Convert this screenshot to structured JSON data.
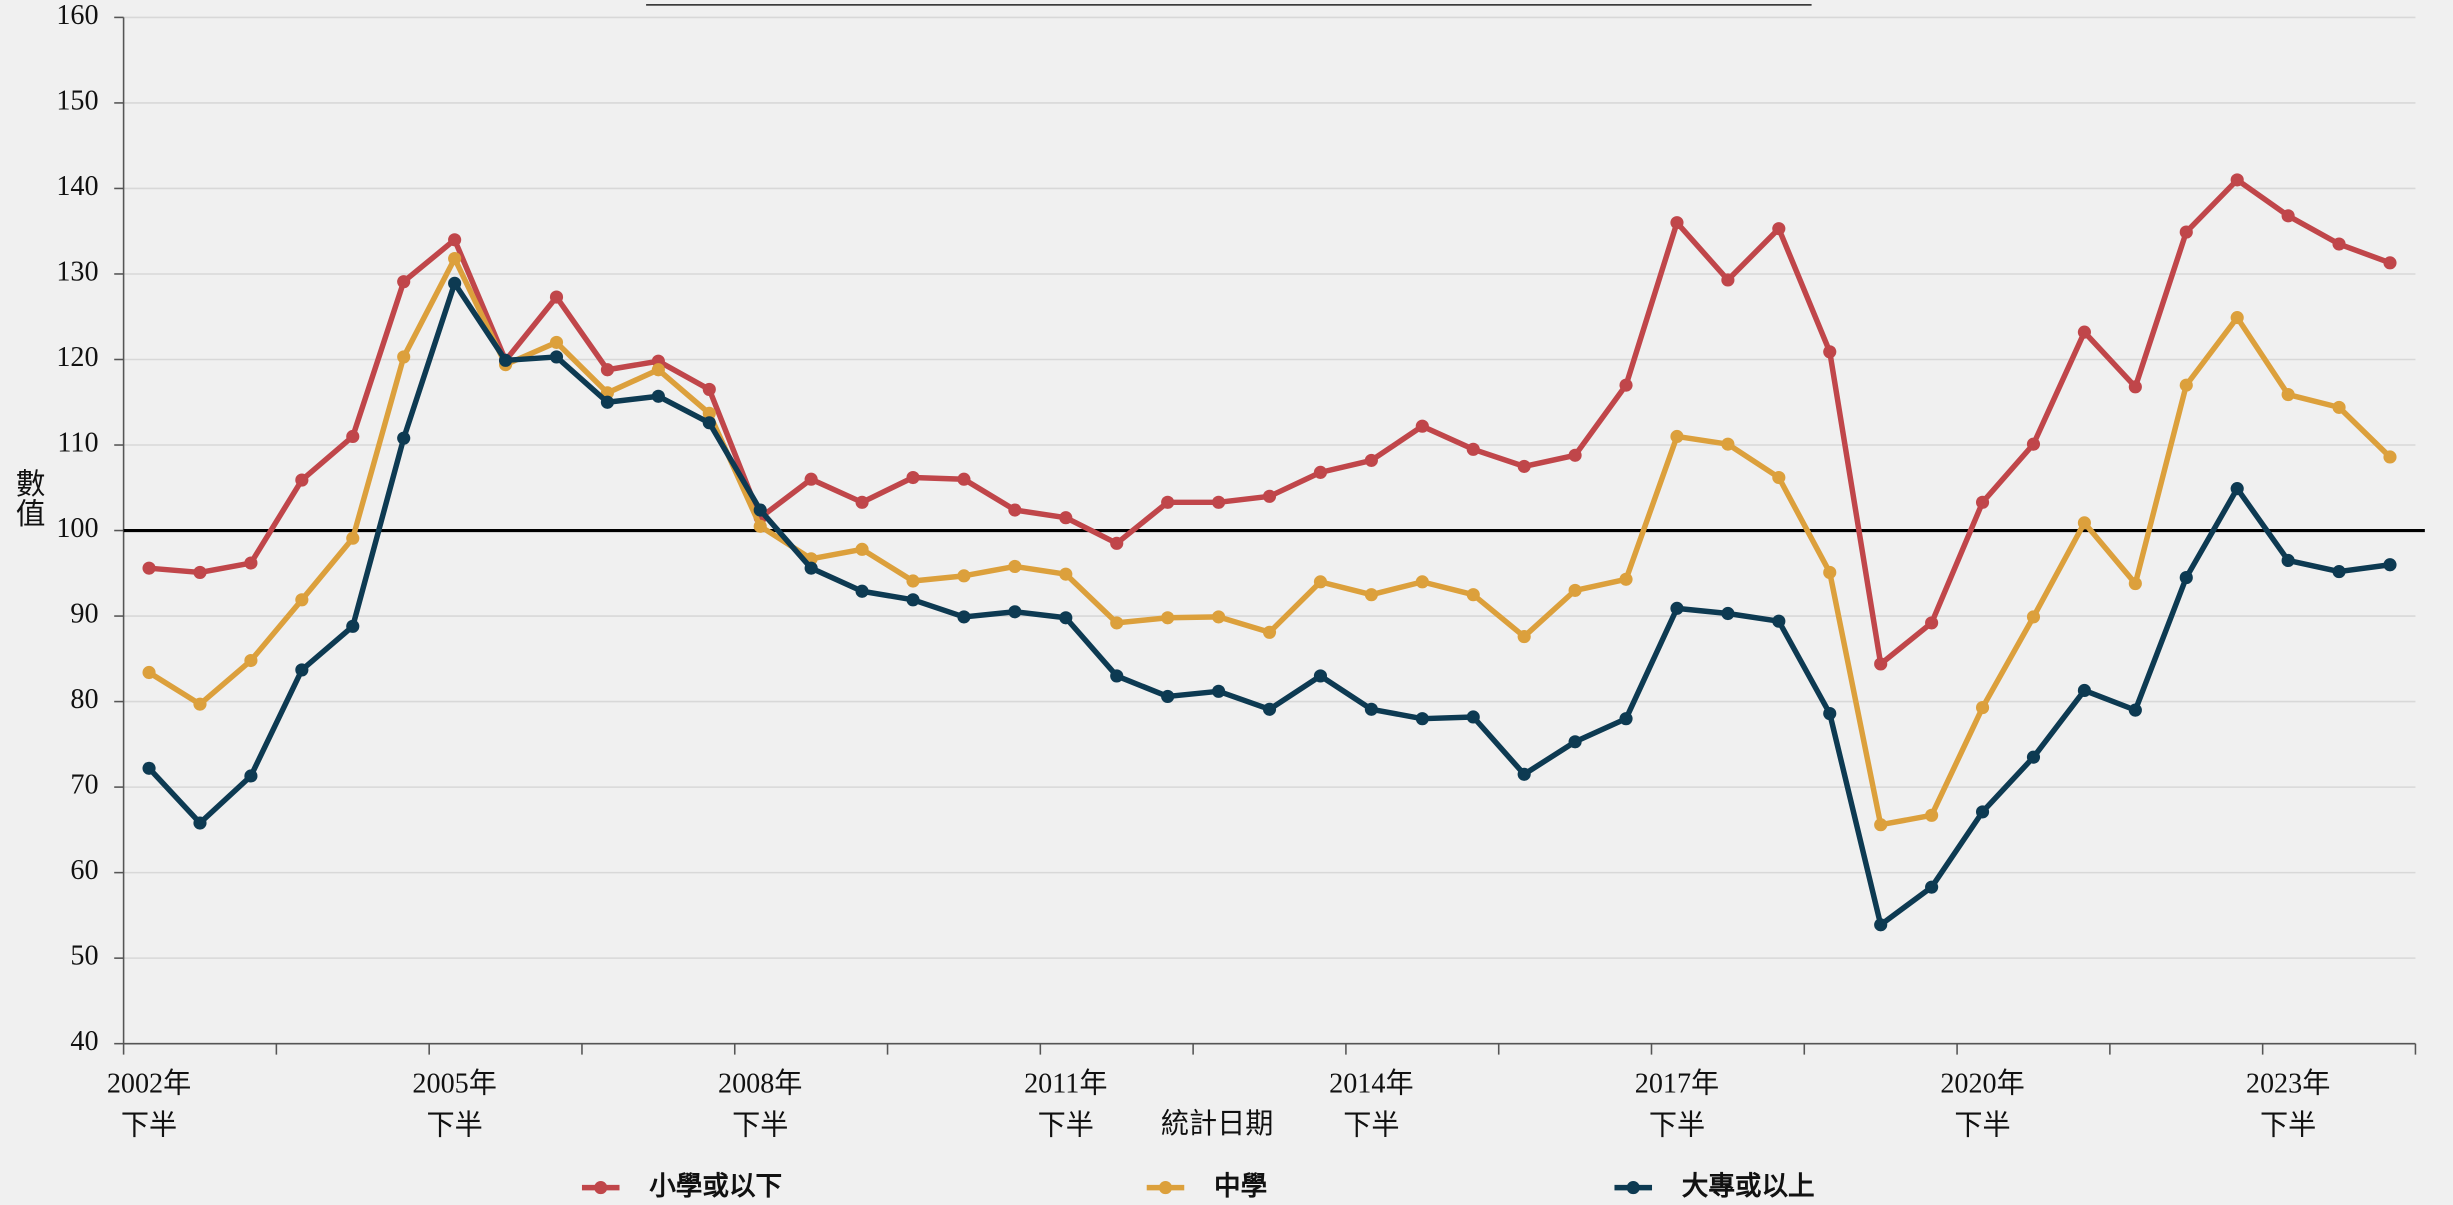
{
  "chart_data": {
    "type": "line",
    "xlabel": "統計日期",
    "ylabel": "數值",
    "categories": [
      [
        "2002年",
        "下半"
      ],
      null,
      null,
      null,
      null,
      null,
      [
        "2005年",
        "下半"
      ],
      null,
      null,
      null,
      null,
      null,
      [
        "2008年",
        "下半"
      ],
      null,
      null,
      null,
      null,
      null,
      [
        "2011年",
        "下半"
      ],
      null,
      null,
      null,
      null,
      null,
      [
        "2014年",
        "下半"
      ],
      null,
      null,
      null,
      null,
      null,
      [
        "2017年",
        "下半"
      ],
      null,
      null,
      null,
      null,
      null,
      [
        "2020年",
        "下半"
      ],
      null,
      null,
      null,
      null,
      null,
      [
        "2023年",
        "下半"
      ],
      null,
      null
    ],
    "series": [
      {
        "name": "小學或以下",
        "color": "#c0464a",
        "values": [
          95.6,
          95.1,
          96.2,
          105.9,
          111.0,
          129.1,
          134.0,
          119.9,
          127.3,
          118.8,
          119.8,
          116.5,
          101.5,
          106.0,
          103.3,
          106.2,
          106.0,
          102.4,
          101.5,
          98.5,
          103.3,
          103.3,
          104.0,
          106.8,
          108.2,
          112.2,
          109.5,
          107.5,
          108.8,
          117.0,
          136.0,
          129.3,
          135.3,
          120.9,
          84.4,
          89.2,
          103.3,
          110.1,
          123.2,
          116.8,
          134.9,
          141.0,
          136.8,
          133.5,
          131.3
        ]
      },
      {
        "name": "中學",
        "color": "#dca03c",
        "values": [
          83.4,
          79.7,
          84.8,
          91.9,
          99.1,
          120.3,
          131.8,
          119.4,
          122.0,
          116.1,
          118.8,
          113.7,
          100.5,
          96.7,
          97.8,
          94.1,
          94.7,
          95.8,
          94.9,
          89.2,
          89.8,
          89.9,
          88.1,
          94.0,
          92.5,
          94.0,
          92.5,
          87.6,
          93.0,
          94.3,
          111.0,
          110.1,
          106.2,
          95.1,
          65.6,
          66.7,
          79.3,
          89.9,
          100.9,
          93.8,
          117.0,
          124.9,
          115.9,
          114.4,
          108.6
        ]
      },
      {
        "name": "大專或以上",
        "color": "#0d3a52",
        "values": [
          72.2,
          65.8,
          71.3,
          83.7,
          88.8,
          110.8,
          128.9,
          119.9,
          120.3,
          115.0,
          115.7,
          112.6,
          102.4,
          95.6,
          92.9,
          91.9,
          89.9,
          90.5,
          89.8,
          83.0,
          80.6,
          81.2,
          79.1,
          83.0,
          79.1,
          78.0,
          78.2,
          71.5,
          75.3,
          78.0,
          90.9,
          90.3,
          89.4,
          78.6,
          53.9,
          58.3,
          67.1,
          73.5,
          81.3,
          79.0,
          94.5,
          104.9,
          96.5,
          95.2,
          96.0
        ]
      }
    ],
    "ylim": [
      40,
      160
    ],
    "yticks": [
      40,
      50,
      60,
      70,
      80,
      90,
      100,
      110,
      120,
      130,
      140,
      150,
      160
    ],
    "reference_line": 100,
    "grid": true
  }
}
